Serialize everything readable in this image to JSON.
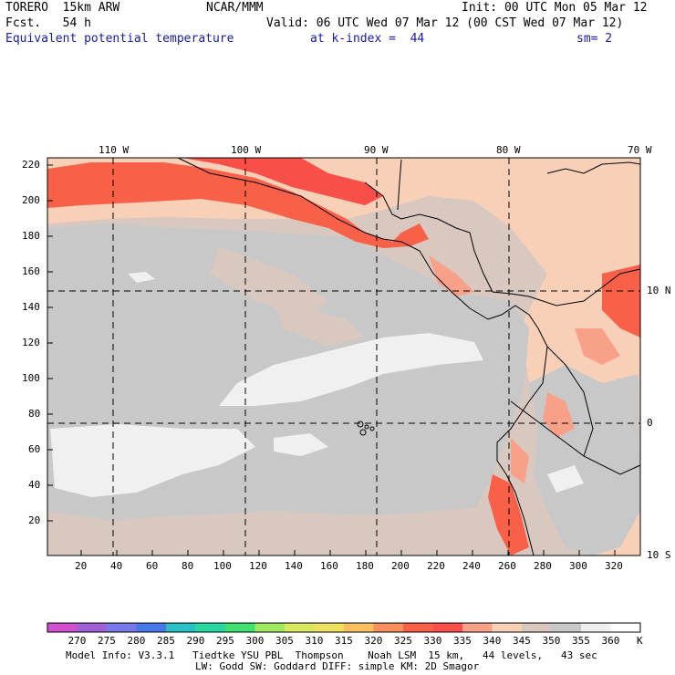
{
  "header": {
    "model": "TORERO  15km ARW",
    "center": "NCAR/MMM",
    "init": "Init: 00 UTC Mon 05 Mar 12",
    "fcst": "Fcst.   54 h",
    "valid": "Valid: 06 UTC Wed 07 Mar 12 (00 CST Wed 07 Mar 12)",
    "field": "Equivalent potential temperature",
    "level": "at k-index =  44",
    "smoothing": "sm= 2"
  },
  "map": {
    "lon_labels": [
      "110 W",
      "100 W",
      "90 W",
      "80 W",
      "70 W"
    ],
    "lat_labels": [
      "10 N",
      "0",
      "10 S"
    ],
    "x_ticks": [
      "20",
      "40",
      "60",
      "80",
      "100",
      "120",
      "140",
      "160",
      "180",
      "200",
      "220",
      "240",
      "260",
      "280",
      "300",
      "320"
    ],
    "y_ticks": [
      "220",
      "200",
      "180",
      "160",
      "140",
      "120",
      "100",
      "80",
      "60",
      "40",
      "20"
    ]
  },
  "colorbar": {
    "levels": [
      "270",
      "275",
      "280",
      "285",
      "290",
      "295",
      "300",
      "305",
      "310",
      "315",
      "320",
      "325",
      "330",
      "335",
      "340",
      "345",
      "350",
      "355",
      "360"
    ],
    "unit": "K",
    "colors": [
      "#d050d0",
      "#a060d8",
      "#7878e8",
      "#4878e8",
      "#28c0c0",
      "#28d8a0",
      "#40e070",
      "#a0e860",
      "#d8e860",
      "#f0e060",
      "#f8c060",
      "#f89060",
      "#f86048",
      "#f85048",
      "#f8a088",
      "#f8d0b8",
      "#d8c8c0",
      "#c8c8c8",
      "#f0f0f0",
      "#ffffff"
    ]
  },
  "footer": {
    "line1": "Model Info: V3.3.1   Tiedtke YSU PBL  Thompson    Noah LSM  15 km,   44 levels,   43 sec",
    "line2": "LW: Godd SW: Goddard DIFF: simple KM: 2D Smagor"
  }
}
